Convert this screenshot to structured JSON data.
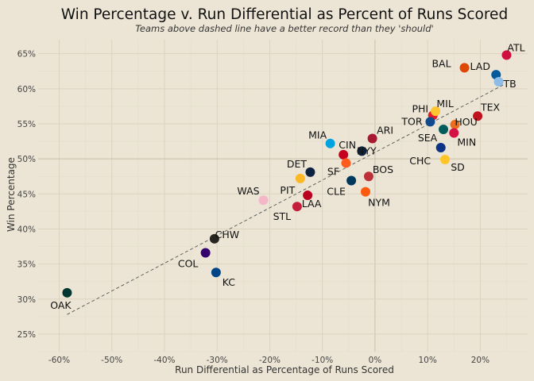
{
  "chart_data": {
    "type": "scatter",
    "title": "Win Percentage v. Run Differential as Percent of Runs Scored",
    "subtitle": "Teams above dashed line have a better record than they 'should'",
    "xlabel": "Run Differential as Percentage of Runs Scored",
    "ylabel": "Win Percentage",
    "xlim": [
      -0.64,
      0.29
    ],
    "ylim": [
      0.225,
      0.67
    ],
    "x_ticks": [
      -0.6,
      -0.5,
      -0.4,
      -0.3,
      -0.2,
      -0.1,
      0.0,
      0.1,
      0.2
    ],
    "x_tick_labels": [
      "-60%",
      "-50%",
      "-40%",
      "-30%",
      "-20%",
      "-10%",
      "0%",
      "10%",
      "20%"
    ],
    "y_ticks": [
      0.25,
      0.3,
      0.35,
      0.4,
      0.45,
      0.5,
      0.55,
      0.6,
      0.65
    ],
    "y_tick_labels": [
      "25%",
      "30%",
      "35%",
      "40%",
      "45%",
      "50%",
      "55%",
      "60%",
      "65%"
    ],
    "grid": true,
    "trend_line": {
      "style": "dashed",
      "from": [
        -0.585,
        0.278
      ],
      "to": [
        0.245,
        0.606
      ]
    },
    "points": [
      {
        "team": "ATL",
        "x": 0.25,
        "y": 0.648,
        "color": "#CE1141",
        "label_dx": 12,
        "label_dy": -9
      },
      {
        "team": "BAL",
        "x": 0.17,
        "y": 0.63,
        "color": "#DF4601",
        "label_dx": -29,
        "label_dy": -5
      },
      {
        "team": "LAD",
        "x": 0.23,
        "y": 0.62,
        "color": "#005A9C",
        "label_dx": -20,
        "label_dy": -10
      },
      {
        "team": "TB",
        "x": 0.235,
        "y": 0.61,
        "color": "#8FBCE6",
        "label_dx": 14,
        "label_dy": 3
      },
      {
        "team": "TEX",
        "x": 0.195,
        "y": 0.561,
        "color": "#C0111F",
        "label_dx": 16,
        "label_dy": -11
      },
      {
        "team": "PHI",
        "x": 0.11,
        "y": 0.562,
        "color": "#E81828",
        "label_dx": -16,
        "label_dy": -8
      },
      {
        "team": "MIL",
        "x": 0.115,
        "y": 0.568,
        "color": "#FFC52F",
        "label_dx": 12,
        "label_dy": -9
      },
      {
        "team": "TOR",
        "x": 0.105,
        "y": 0.553,
        "color": "#134A8E",
        "label_dx": -23,
        "label_dy": 0
      },
      {
        "team": "HOU",
        "x": 0.152,
        "y": 0.549,
        "color": "#EB6E1F",
        "label_dx": 14,
        "label_dy": -3
      },
      {
        "team": "SEA",
        "x": 0.13,
        "y": 0.542,
        "color": "#005C5C",
        "label_dx": -20,
        "label_dy": 11
      },
      {
        "team": "MIN",
        "x": 0.15,
        "y": 0.537,
        "color": "#D31145",
        "label_dx": 16,
        "label_dy": 12
      },
      {
        "team": "CHC",
        "x": 0.125,
        "y": 0.516,
        "color": "#0E3386",
        "label_dx": -26,
        "label_dy": 17
      },
      {
        "team": "SD",
        "x": 0.133,
        "y": 0.499,
        "color": "#FFC425",
        "label_dx": 16,
        "label_dy": 10
      },
      {
        "team": "ARI",
        "x": -0.005,
        "y": 0.529,
        "color": "#A71930",
        "label_dx": 16,
        "label_dy": -10
      },
      {
        "team": "MIA",
        "x": -0.085,
        "y": 0.522,
        "color": "#00A3E0",
        "label_dx": -16,
        "label_dy": -10
      },
      {
        "team": "CIN",
        "x": -0.06,
        "y": 0.506,
        "color": "#C6011F",
        "label_dx": 5,
        "label_dy": -12
      },
      {
        "team": "NYY",
        "x": -0.025,
        "y": 0.511,
        "color": "#0C2340",
        "label_dx": 6,
        "label_dy": 0
      },
      {
        "team": "DET",
        "x": -0.123,
        "y": 0.481,
        "color": "#0C2340",
        "label_dx": -17,
        "label_dy": -10
      },
      {
        "team": "SF",
        "x": -0.055,
        "y": 0.494,
        "color": "#FD5A1E",
        "label_dx": -16,
        "label_dy": 11
      },
      {
        "team": "BOS",
        "x": -0.012,
        "y": 0.475,
        "color": "#BD3039",
        "label_dx": 18,
        "label_dy": -8
      },
      {
        "team": "CLE",
        "x": -0.045,
        "y": 0.469,
        "color": "#00385D",
        "label_dx": -19,
        "label_dy": 14
      },
      {
        "team": "PIT",
        "x": -0.142,
        "y": 0.472,
        "color": "#FDB827",
        "label_dx": -16,
        "label_dy": 15
      },
      {
        "team": "WAS",
        "x": -0.212,
        "y": 0.441,
        "color": "#F4B7C7",
        "label_dx": -19,
        "label_dy": -11
      },
      {
        "team": "LAA",
        "x": -0.128,
        "y": 0.448,
        "color": "#BA0021",
        "label_dx": 5,
        "label_dy": 11
      },
      {
        "team": "NYM",
        "x": -0.018,
        "y": 0.453,
        "color": "#FF5910",
        "label_dx": 17,
        "label_dy": 14
      },
      {
        "team": "STL",
        "x": -0.148,
        "y": 0.432,
        "color": "#C41E3A",
        "label_dx": -19,
        "label_dy": 13
      },
      {
        "team": "CHW",
        "x": -0.305,
        "y": 0.386,
        "color": "#27251F",
        "label_dx": 16,
        "label_dy": -5
      },
      {
        "team": "COL",
        "x": -0.322,
        "y": 0.366,
        "color": "#33006F",
        "label_dx": -22,
        "label_dy": 14
      },
      {
        "team": "KC",
        "x": -0.302,
        "y": 0.338,
        "color": "#004687",
        "label_dx": 16,
        "label_dy": 13
      },
      {
        "team": "OAK",
        "x": -0.585,
        "y": 0.309,
        "color": "#003831",
        "label_dx": -8,
        "label_dy": 16
      }
    ]
  }
}
